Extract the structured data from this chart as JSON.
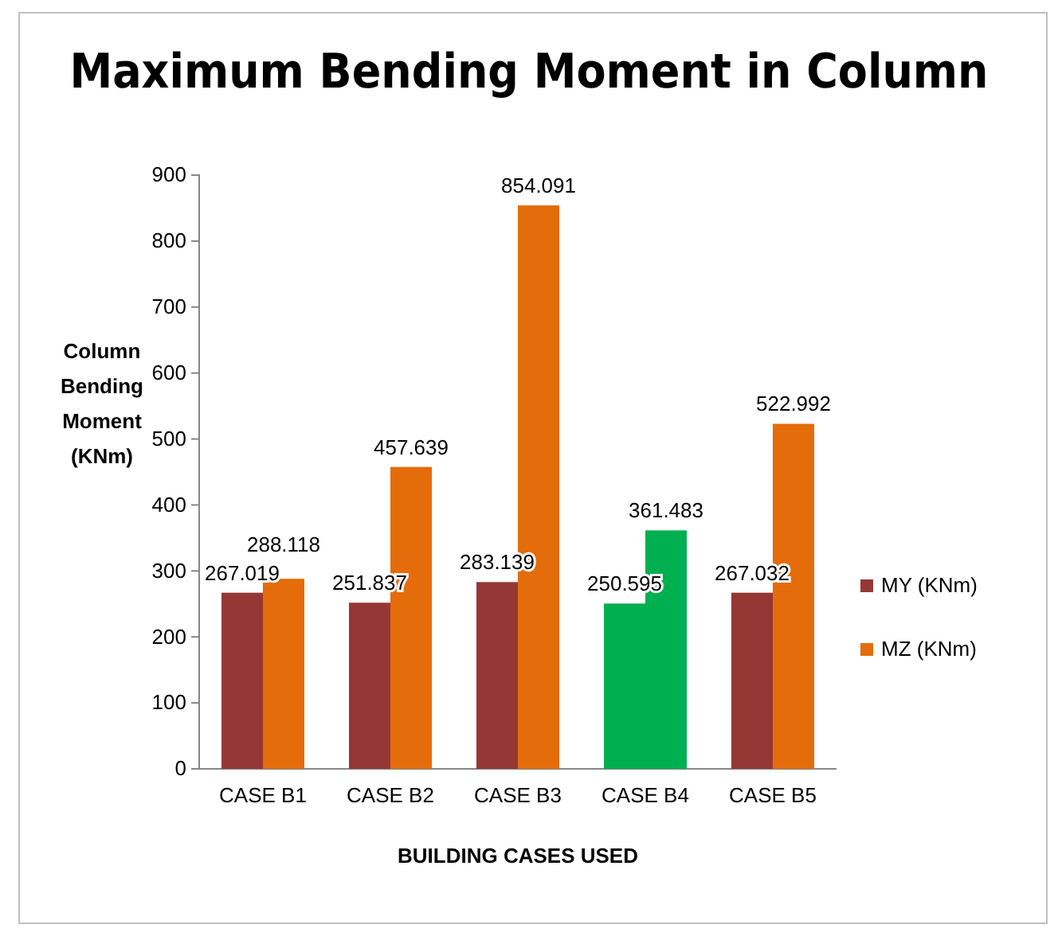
{
  "chart_data": {
    "type": "bar",
    "title": "Maximum Bending Moment in Column",
    "xlabel": "BUILDING CASES USED",
    "ylabel": "Column Bending Moment (KNm)",
    "categories": [
      "CASE B1",
      "CASE B2",
      "CASE B3",
      "CASE B4",
      "CASE B5"
    ],
    "series": [
      {
        "name": "MY (KNm)",
        "color": "#953735",
        "colors": [
          "#953735",
          "#953735",
          "#953735",
          "#00b050",
          "#953735"
        ],
        "values": [
          267.019,
          251.837,
          283.139,
          250.595,
          267.032
        ]
      },
      {
        "name": "MZ (KNm)",
        "color": "#e46c0a",
        "colors": [
          "#e46c0a",
          "#e46c0a",
          "#e46c0a",
          "#00b050",
          "#e46c0a"
        ],
        "values": [
          288.118,
          457.639,
          854.091,
          361.483,
          522.992
        ]
      }
    ],
    "ylim": [
      0,
      900
    ],
    "yticks": [
      0,
      100,
      200,
      300,
      400,
      500,
      600,
      700,
      800,
      900
    ],
    "data_labels": true,
    "legend": "right",
    "grid": false
  }
}
